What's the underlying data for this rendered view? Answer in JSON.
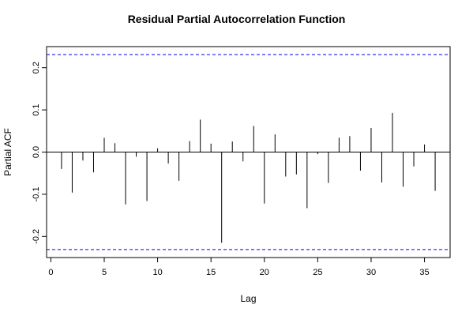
{
  "chart_data": {
    "type": "bar",
    "title": "Residual Partial Autocorrelation Function",
    "xlabel": "Lag",
    "ylabel": "Partial ACF",
    "xlim": [
      -0.4,
      37.4
    ],
    "ylim": [
      -0.25,
      0.25
    ],
    "x_ticks": [
      "0",
      "5",
      "10",
      "15",
      "20",
      "25",
      "30",
      "35"
    ],
    "x_tick_values": [
      0,
      5,
      10,
      15,
      20,
      25,
      30,
      35
    ],
    "y_ticks": [
      "-0.2",
      "-0.1",
      "0.0",
      "0.1",
      "0.2"
    ],
    "y_tick_values": [
      -0.2,
      -0.1,
      0.0,
      0.1,
      0.2
    ],
    "confidence_bound": 0.231,
    "lags": [
      1,
      2,
      3,
      4,
      5,
      6,
      7,
      8,
      9,
      10,
      11,
      12,
      13,
      14,
      15,
      16,
      17,
      18,
      19,
      20,
      21,
      22,
      23,
      24,
      25,
      26,
      27,
      28,
      29,
      30,
      31,
      32,
      33,
      34,
      35,
      36
    ],
    "values": [
      -0.04,
      -0.096,
      -0.02,
      -0.048,
      0.034,
      0.021,
      -0.124,
      -0.011,
      -0.116,
      0.009,
      -0.027,
      -0.068,
      0.026,
      0.077,
      0.02,
      -0.215,
      0.025,
      -0.022,
      0.062,
      -0.122,
      0.042,
      -0.058,
      -0.053,
      -0.133,
      -0.005,
      -0.073,
      0.034,
      0.038,
      -0.044,
      0.057,
      -0.072,
      0.093,
      -0.082,
      -0.034,
      0.018,
      -0.092
    ],
    "colors": {
      "bars": "#000000",
      "bounds": "#0000ff",
      "zero_line": "#000000",
      "frame": "#000000"
    }
  }
}
